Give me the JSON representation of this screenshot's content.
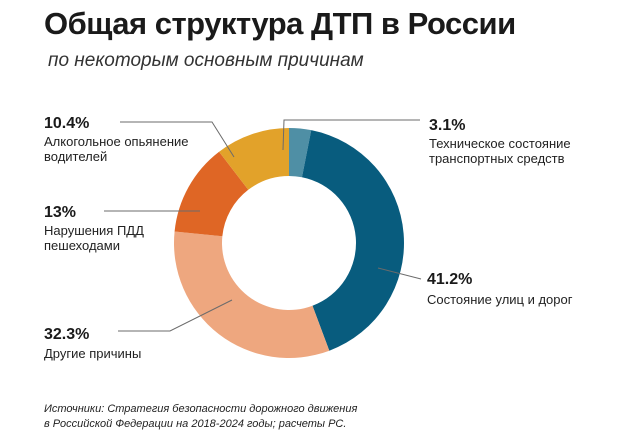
{
  "title": "Общая структура ДТП в России",
  "subtitle": "по некоторым основным причинам",
  "source": {
    "line1": "Источники: Стратегия безопасности дорожного движения",
    "line2": "в Российской Федерации на 2018-2024 годы; расчеты РС."
  },
  "chart_data": {
    "type": "pie",
    "donut": true,
    "slices": [
      {
        "key": "tech",
        "value": 3.1,
        "label": "3.1%",
        "text": [
          "Техническое состояние",
          "транспортных средств"
        ],
        "color": "#4f8fa5"
      },
      {
        "key": "roads",
        "value": 41.2,
        "label": "41.2%",
        "text": [
          "Состояние улиц и дорог"
        ],
        "color": "#085c7e"
      },
      {
        "key": "other",
        "value": 32.3,
        "label": "32.3%",
        "text": [
          "Другие причины"
        ],
        "color": "#eea77f"
      },
      {
        "key": "peds",
        "value": 13,
        "label": "13%",
        "text": [
          "Нарушения ПДД",
          "пешеходами"
        ],
        "color": "#df6625"
      },
      {
        "key": "alcohol",
        "value": 10.4,
        "label": "10.4%",
        "text": [
          "Алкогольное опьянение",
          "водителей"
        ],
        "color": "#e2a22a"
      }
    ]
  }
}
